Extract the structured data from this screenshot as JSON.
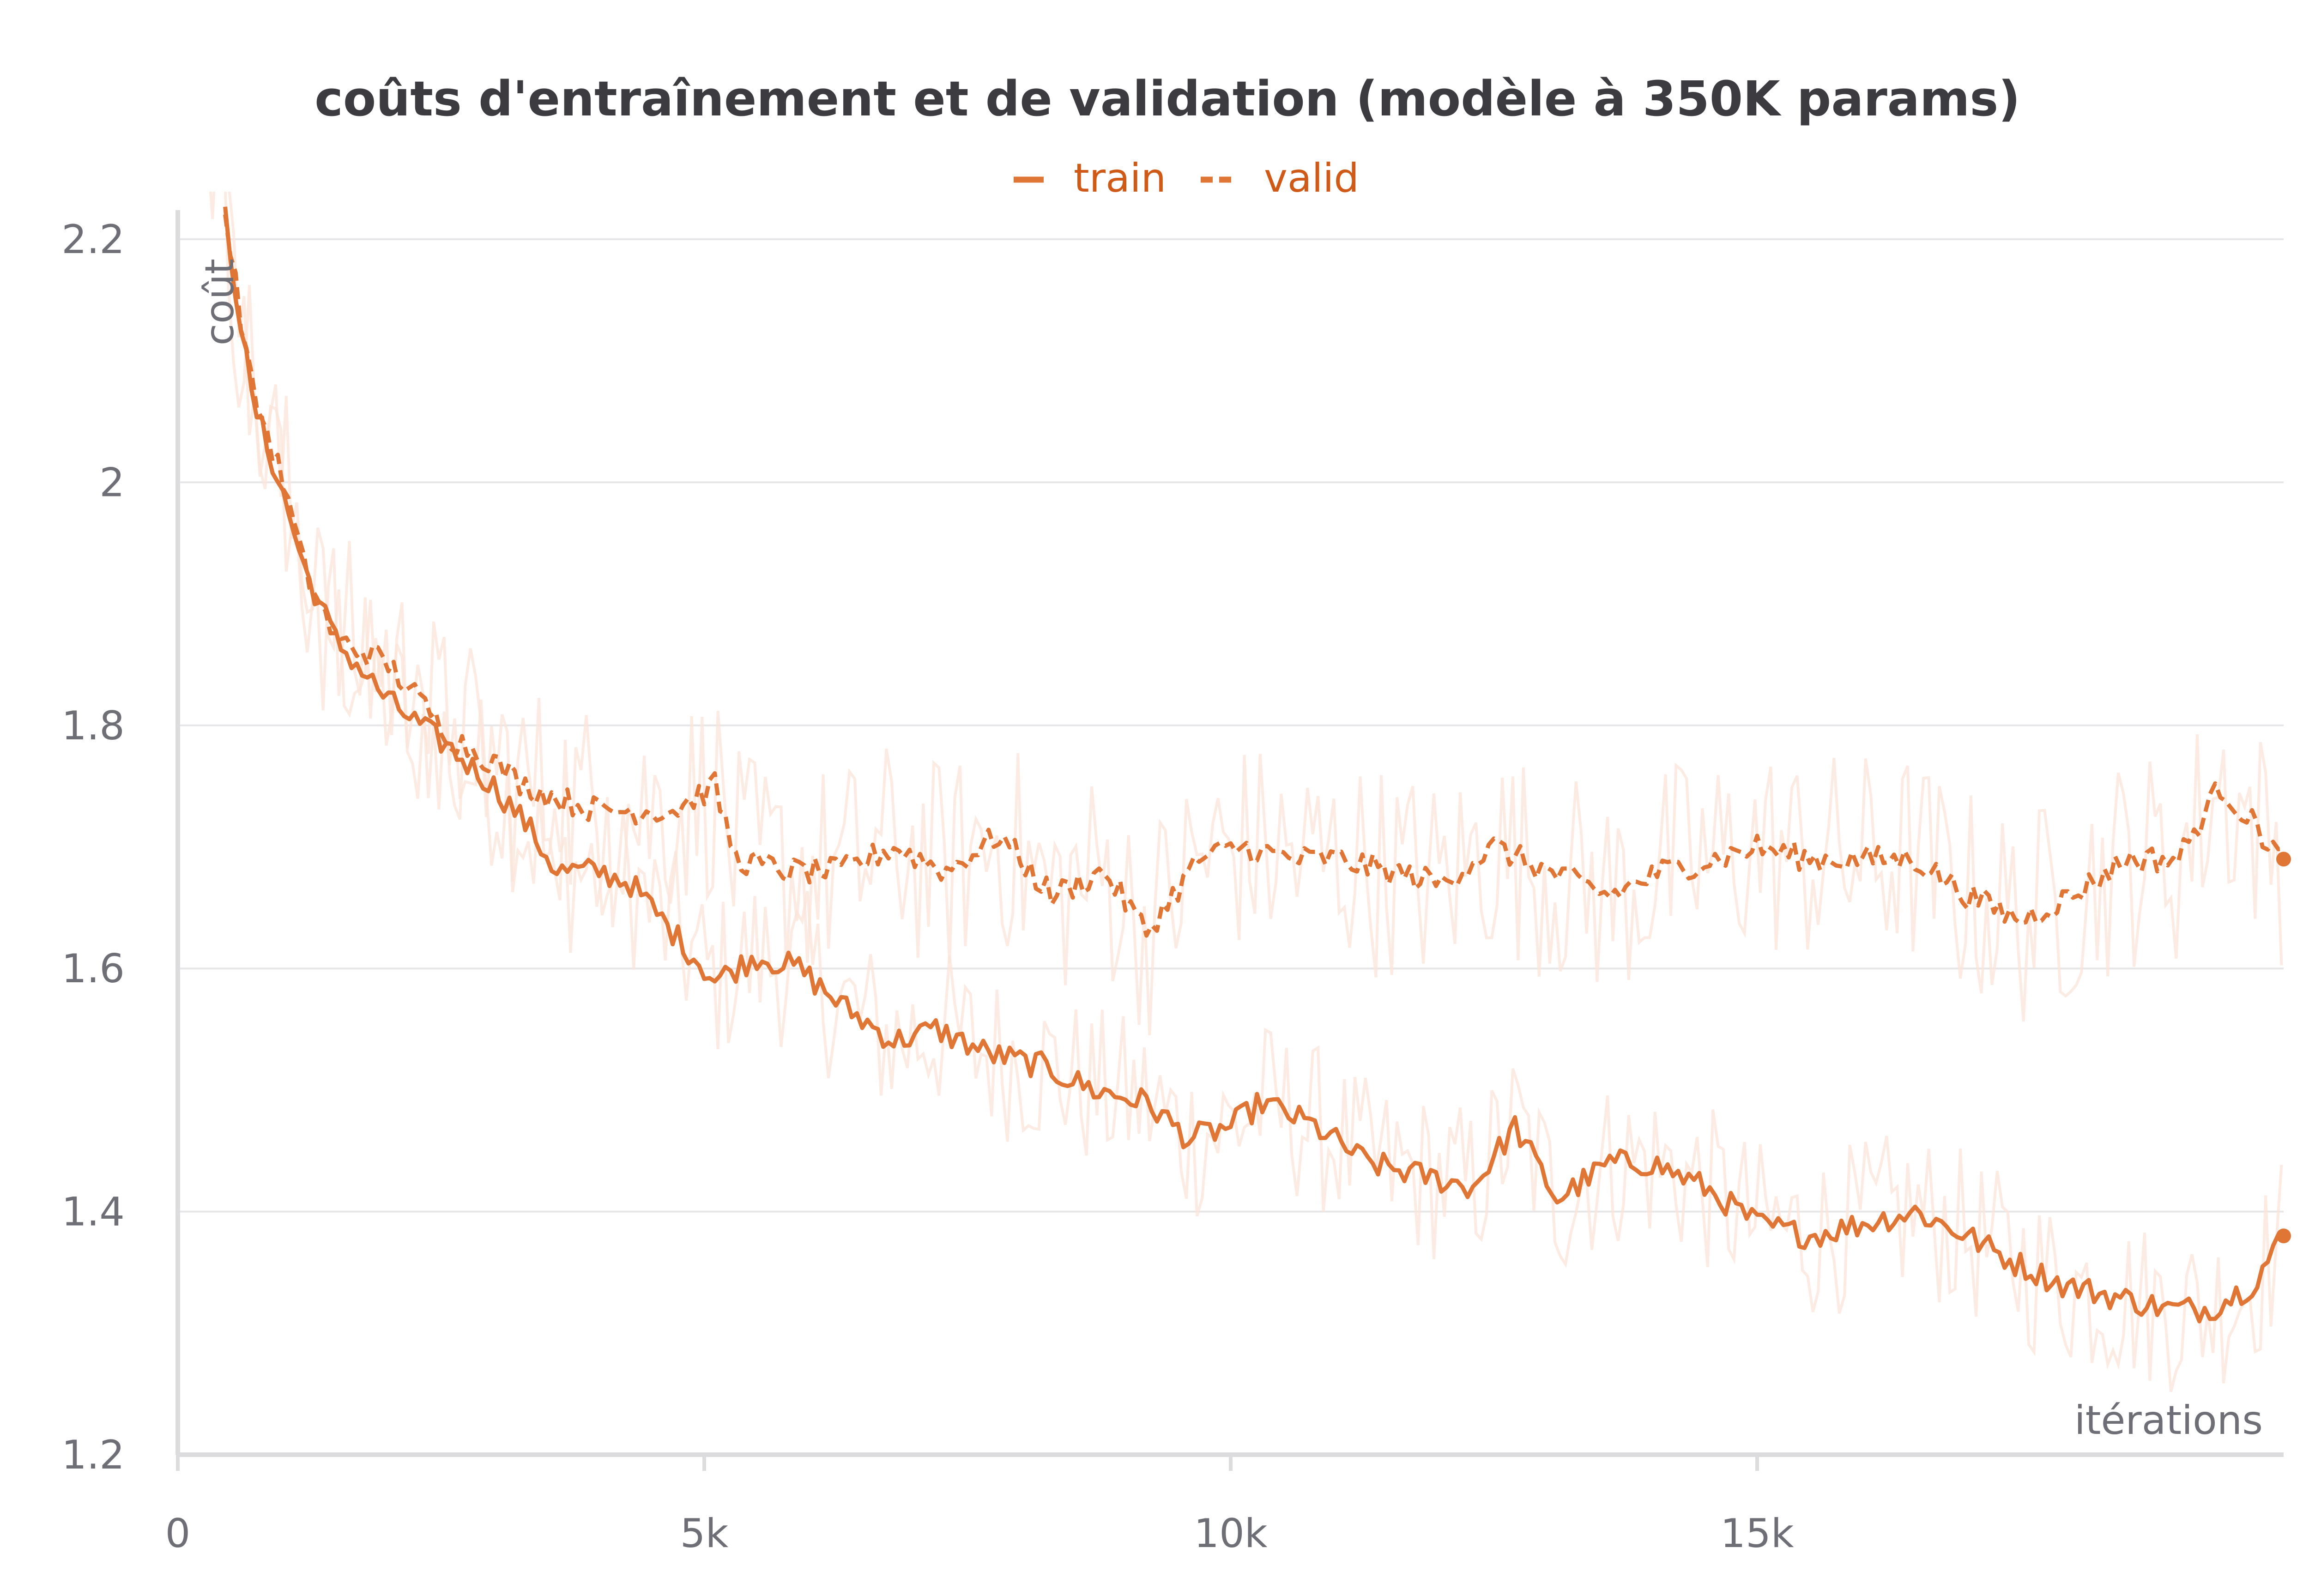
{
  "chart_data": {
    "type": "line",
    "title": "coûts d'entraînement et de validation (modèle à 350K params)",
    "xlabel": "itérations",
    "ylabel": "coût",
    "xlim": [
      0,
      20000
    ],
    "ylim": [
      1.2,
      2.22
    ],
    "x_ticks": [
      0,
      5000,
      10000,
      15000
    ],
    "x_tick_labels": [
      "0",
      "5k",
      "10k",
      "15k"
    ],
    "y_ticks": [
      1.2,
      1.4,
      1.6,
      1.8,
      2.0,
      2.2
    ],
    "y_tick_labels": [
      "1.2",
      "1.4",
      "1.6",
      "1.8",
      "2",
      "2.2"
    ],
    "grid": true,
    "legend_position": "top-center",
    "colors": {
      "series": "#e07636",
      "raw": "#fbe4d8",
      "text": "#cf5a17"
    },
    "series": [
      {
        "name": "train",
        "style": "solid",
        "x": [
          450,
          700,
          1000,
          1200,
          1500,
          1800,
          2000,
          2300,
          2600,
          3000,
          3300,
          3600,
          4000,
          4300,
          4700,
          5100,
          5500,
          5900,
          6300,
          6800,
          7200,
          7700,
          8200,
          8700,
          9200,
          9600,
          10000,
          10300,
          10800,
          11300,
          11800,
          12300,
          12700,
          13100,
          13600,
          14000,
          14500,
          15000,
          15500,
          16000,
          16500,
          17000,
          17400,
          17900,
          18400,
          18900,
          19300,
          19700,
          20000
        ],
        "values": [
          2.22,
          2.07,
          1.99,
          1.93,
          1.87,
          1.84,
          1.82,
          1.8,
          1.78,
          1.75,
          1.72,
          1.68,
          1.68,
          1.67,
          1.63,
          1.59,
          1.61,
          1.6,
          1.57,
          1.54,
          1.55,
          1.53,
          1.52,
          1.5,
          1.49,
          1.46,
          1.47,
          1.49,
          1.47,
          1.44,
          1.43,
          1.42,
          1.47,
          1.41,
          1.44,
          1.44,
          1.42,
          1.39,
          1.38,
          1.39,
          1.4,
          1.38,
          1.36,
          1.34,
          1.33,
          1.32,
          1.32,
          1.34,
          1.38
        ]
      },
      {
        "name": "valid",
        "style": "dashed",
        "x": [
          450,
          700,
          1000,
          1200,
          1500,
          1800,
          2000,
          2300,
          2600,
          3000,
          3300,
          3600,
          4000,
          4300,
          4700,
          5100,
          5300,
          5800,
          6300,
          6800,
          7300,
          7800,
          8300,
          8800,
          9200,
          9700,
          10100,
          10600,
          11000,
          11500,
          12000,
          12500,
          13000,
          13600,
          14100,
          14600,
          15000,
          15500,
          16000,
          16500,
          17000,
          17500,
          18000,
          18500,
          19000,
          19400,
          19700,
          20000
        ],
        "values": [
          2.22,
          2.08,
          2.0,
          1.93,
          1.87,
          1.86,
          1.85,
          1.82,
          1.79,
          1.77,
          1.75,
          1.74,
          1.73,
          1.73,
          1.73,
          1.75,
          1.69,
          1.68,
          1.68,
          1.7,
          1.68,
          1.71,
          1.66,
          1.68,
          1.63,
          1.69,
          1.7,
          1.69,
          1.69,
          1.68,
          1.67,
          1.7,
          1.68,
          1.66,
          1.68,
          1.69,
          1.7,
          1.69,
          1.69,
          1.69,
          1.66,
          1.64,
          1.66,
          1.69,
          1.69,
          1.75,
          1.72,
          1.69
        ]
      }
    ]
  }
}
